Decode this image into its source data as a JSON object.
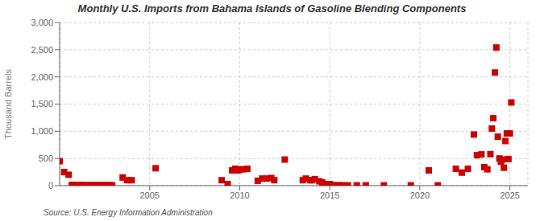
{
  "chart_data": {
    "type": "scatter",
    "title": "Monthly U.S. Imports from Bahama Islands of Gasoline Blending Components",
    "ylabel": "Thousand Barrels",
    "annotation": "Source: U.S. Energy Information Administration",
    "color": "#cc0000",
    "marker": "square",
    "grid": true,
    "xlim": [
      2000.0,
      2026.0
    ],
    "xticks": [
      2005,
      2010,
      2015,
      2020,
      2025
    ],
    "ylim": [
      0,
      3000
    ],
    "yticks": [
      0,
      500,
      {
        "value": 1000,
        "label": "1,000"
      },
      {
        "value": 1500,
        "label": "1,500"
      },
      {
        "value": 2000,
        "label": "2,000"
      },
      {
        "value": 2500,
        "label": "2,500"
      },
      {
        "value": 3000,
        "label": "3,000"
      }
    ],
    "x": [
      2000.0,
      2000.25,
      2000.5,
      2000.67,
      2000.75,
      2001.0,
      2001.08,
      2001.17,
      2001.25,
      2001.33,
      2001.42,
      2001.5,
      2001.58,
      2001.67,
      2001.75,
      2001.83,
      2001.92,
      2002.0,
      2002.08,
      2002.17,
      2002.25,
      2002.33,
      2002.42,
      2002.5,
      2002.58,
      2002.67,
      2002.75,
      2002.83,
      2002.92,
      2003.5,
      2003.75,
      2004.0,
      2005.33,
      2009.0,
      2009.33,
      2009.58,
      2009.75,
      2009.92,
      2010.0,
      2010.17,
      2010.42,
      2011.0,
      2011.25,
      2011.5,
      2011.75,
      2011.92,
      2012.5,
      2013.5,
      2013.67,
      2013.92,
      2014.0,
      2014.17,
      2014.42,
      2014.58,
      2014.75,
      2015.0,
      2015.17,
      2015.5,
      2015.75,
      2016.0,
      2016.5,
      2017.0,
      2018.0,
      2019.5,
      2020.5,
      2021.0,
      2022.0,
      2022.33,
      2022.67,
      2023.0,
      2023.17,
      2023.42,
      2023.58,
      2023.75,
      2023.92,
      2024.0,
      2024.08,
      2024.17,
      2024.25,
      2024.33,
      2024.42,
      2024.5,
      2024.58,
      2024.67,
      2024.75,
      2024.83,
      2024.92,
      2025.0,
      2025.08
    ],
    "values": [
      450,
      250,
      200,
      8,
      15,
      5,
      10,
      8,
      5,
      5,
      5,
      5,
      5,
      5,
      5,
      5,
      5,
      5,
      5,
      5,
      5,
      5,
      5,
      5,
      5,
      5,
      5,
      5,
      5,
      150,
      100,
      100,
      320,
      100,
      30,
      280,
      310,
      280,
      300,
      300,
      310,
      90,
      130,
      130,
      140,
      100,
      480,
      100,
      130,
      100,
      100,
      120,
      80,
      60,
      30,
      30,
      10,
      10,
      5,
      5,
      5,
      5,
      5,
      5,
      280,
      5,
      310,
      240,
      310,
      940,
      560,
      575,
      340,
      300,
      580,
      1050,
      1240,
      2080,
      2540,
      900,
      500,
      440,
      480,
      330,
      820,
      960,
      490,
      960,
      1530
    ]
  }
}
